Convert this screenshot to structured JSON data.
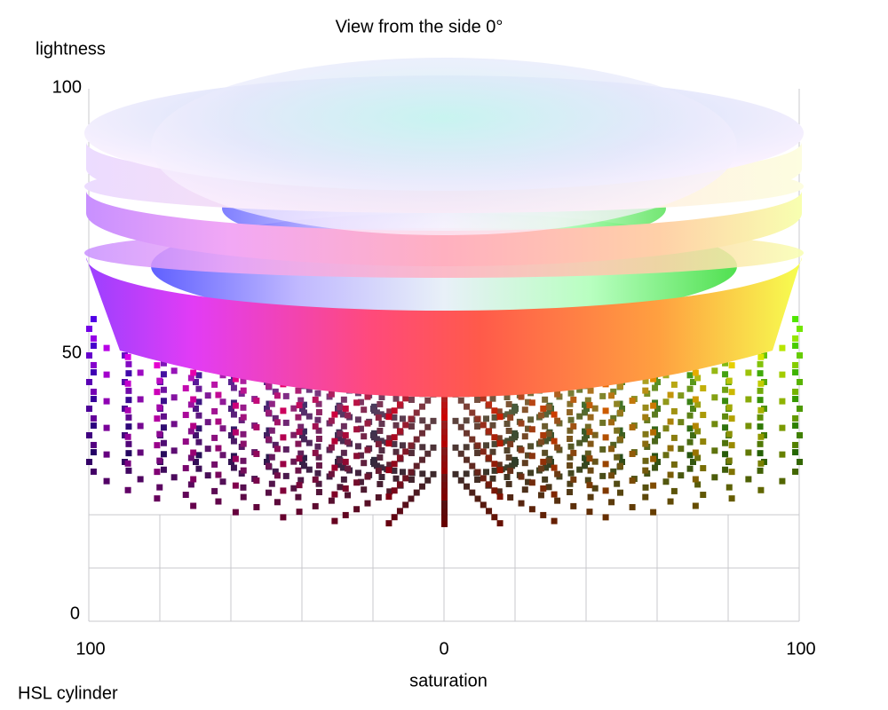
{
  "title": "View from the side 0°",
  "y_axis": {
    "label": "lightness",
    "ticks": [
      "100",
      "50",
      "0"
    ]
  },
  "x_axis": {
    "label": "saturation",
    "ticks": [
      "100",
      "0",
      "100"
    ]
  },
  "caption": "HSL cylinder"
}
